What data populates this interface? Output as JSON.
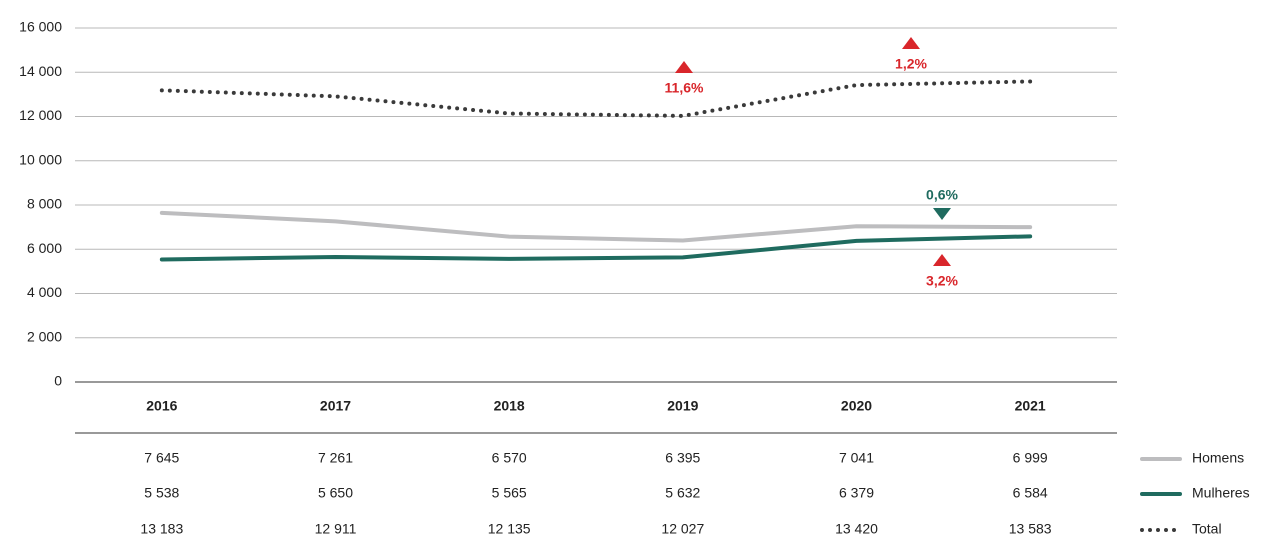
{
  "chart_data": {
    "type": "line",
    "categories": [
      "2016",
      "2017",
      "2018",
      "2019",
      "2020",
      "2021"
    ],
    "series": [
      {
        "name": "Homens",
        "color": "#bdbdbf",
        "style": "solid",
        "values": [
          7645,
          7261,
          6570,
          6395,
          7041,
          6999
        ],
        "value_labels": [
          "7 645",
          "7 261",
          "6 570",
          "6 395",
          "7 041",
          "6 999"
        ]
      },
      {
        "name": "Mulheres",
        "color": "#1f6b5f",
        "style": "solid",
        "values": [
          5538,
          5650,
          5565,
          5632,
          6379,
          6584
        ],
        "value_labels": [
          "5 538",
          "5 650",
          "5 565",
          "5 632",
          "6 379",
          "6 584"
        ]
      },
      {
        "name": "Total",
        "color": "#3a3a3a",
        "style": "dotted",
        "values": [
          13183,
          12911,
          12135,
          12027,
          13420,
          13583
        ],
        "value_labels": [
          "13 183",
          "12 911",
          "12 135",
          "12 027",
          "13 420",
          "13 583"
        ]
      }
    ],
    "ylim": [
      0,
      16000
    ],
    "yticks": [
      0,
      {
        "value": 2000,
        "label": "2 000"
      },
      {
        "value": 4000,
        "label": "4 000"
      },
      {
        "value": 6000,
        "label": "6 000"
      },
      {
        "value": 8000,
        "label": "8 000"
      },
      {
        "value": 10000,
        "label": "10 000"
      },
      {
        "value": 12000,
        "label": "12 000"
      },
      {
        "value": 14000,
        "label": "14 000"
      },
      {
        "value": 16000,
        "label": "16 000"
      }
    ],
    "grid": true,
    "annotations": [
      {
        "text": "11,6%",
        "direction": "up",
        "color": "#d9262b"
      },
      {
        "text": "1,2%",
        "direction": "up",
        "color": "#d9262b"
      },
      {
        "text": "0,6%",
        "direction": "down",
        "color": "#1f6b5f"
      },
      {
        "text": "3,2%",
        "direction": "up",
        "color": "#d9262b"
      }
    ]
  }
}
